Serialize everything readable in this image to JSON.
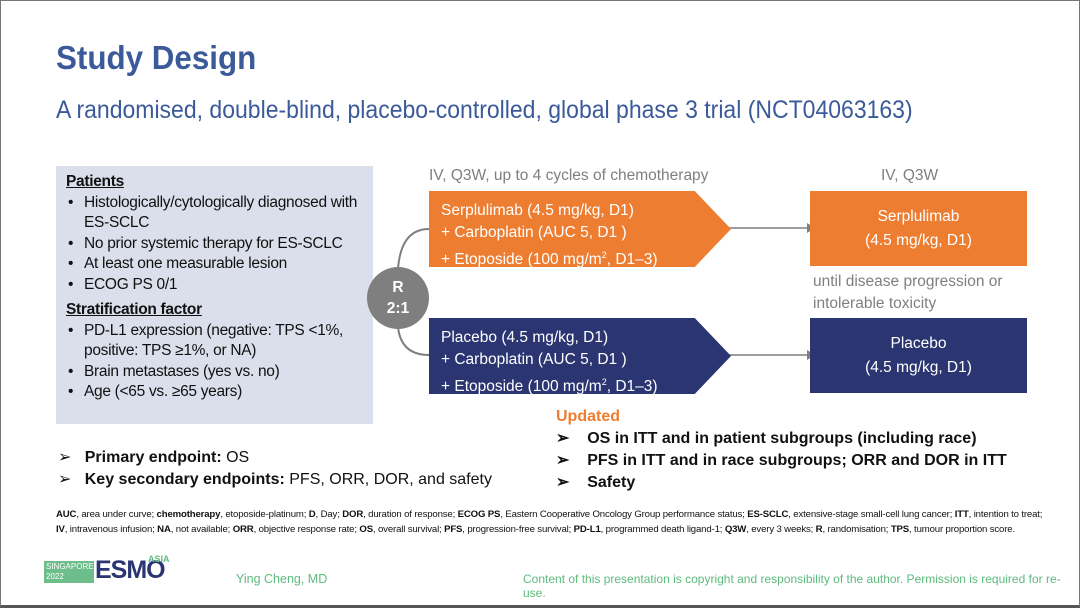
{
  "title": "Study Design",
  "subtitle": "A randomised, double-blind, placebo-controlled, global phase 3 trial (NCT04063163)",
  "patients": {
    "heading": "Patients",
    "items": [
      "Histologically/cytologically diagnosed with ES-SCLC",
      "No prior systemic therapy for ES-SCLC",
      "At least one measurable lesion",
      "ECOG PS 0/1"
    ]
  },
  "stratification": {
    "heading": "Stratification factor",
    "items": [
      "PD-L1 expression (negative: TPS <1%, positive: TPS ≥1%, or NA)",
      "Brain metastases (yes vs. no)",
      "Age (<65 vs. ≥65 years)"
    ]
  },
  "chemo_label": "IV, Q3W, up to 4 cycles of chemotherapy",
  "maint_label": "IV, Q3W",
  "randomisation": {
    "r": "R",
    "ratio": "2:1"
  },
  "arm1": {
    "line1": "Serplulimab (4.5 mg/kg, D1)",
    "line2": "+ Carboplatin (AUC 5, D1 )",
    "line3a": "+ Etoposide (100 mg/m",
    "sup": "2",
    "line3b": ", D1–3)"
  },
  "arm2": {
    "line1": "Placebo (4.5 mg/kg, D1)",
    "line2": "+ Carboplatin (AUC 5, D1 )",
    "line3a": "+ Etoposide (100 mg/m",
    "sup": "2",
    "line3b": ", D1–3)"
  },
  "maint1": {
    "line1": "Serplulimab",
    "line2": "(4.5 mg/kg, D1)"
  },
  "maint2": {
    "line1": "Placebo",
    "line2": "(4.5 mg/kg, D1)"
  },
  "until": "until disease progression or intolerable toxicity",
  "endpoints": {
    "primary_label": "Primary endpoint:",
    "primary": " OS",
    "secondary_label": "Key secondary endpoints:",
    "secondary": " PFS, ORR, DOR, and safety"
  },
  "updated": {
    "heading": "Updated",
    "items": [
      "OS in ITT and in patient subgroups (including race)",
      "PFS in ITT and in race subgroups; ORR and DOR in ITT",
      "Safety"
    ]
  },
  "footnote": [
    [
      "AUC",
      ", area under curve; "
    ],
    [
      "chemotherapy",
      ", etoposide-platinum; "
    ],
    [
      "D",
      ", Day; "
    ],
    [
      "DOR",
      ", duration of response; "
    ],
    [
      "ECOG PS",
      ", Eastern Cooperative Oncology Group performance status; "
    ],
    [
      "ES-SCLC",
      ", extensive-stage small-cell lung cancer; "
    ],
    [
      "ITT",
      ", intention to treat; "
    ],
    [
      "IV",
      ", intravenous infusion; "
    ],
    [
      "NA",
      ", not available; "
    ],
    [
      "ORR",
      ", objective response rate; "
    ],
    [
      "OS",
      ", overall survival; "
    ],
    [
      "PFS",
      ", progression-free survival; "
    ],
    [
      "PD-L1",
      ", programmed death ligand-1; "
    ],
    [
      "Q3W",
      ", every 3 weeks; "
    ],
    [
      "R",
      ", randomisation; "
    ],
    [
      "TPS",
      ", tumour proportion score."
    ]
  ],
  "logo": {
    "text1": "SINGAPORE",
    "text2": "2022",
    "brand": "ESMO",
    "region": "ASIA"
  },
  "author": "Ying Cheng, MD",
  "copyright": "Content of this presentation is copyright and responsibility of the author. Permission is required for re-use.",
  "colors": {
    "title": "#3B5A9A",
    "orange": "#ED7D31",
    "navy": "#2B3571",
    "updated": "#ED7D31",
    "green": "#5DBB7C"
  }
}
